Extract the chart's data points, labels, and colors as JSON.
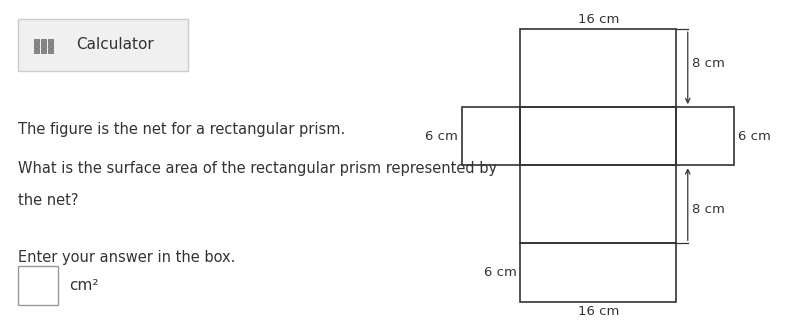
{
  "bg_color": "#ffffff",
  "text_color": "#333333",
  "fig_width": 8.0,
  "fig_height": 3.21,
  "dpi": 100,
  "calc_label": "Calculator",
  "line1": "The figure is the net for a rectangular prism.",
  "line2": "What is the surface area of the rectangular prism represented by",
  "line3": "the net?",
  "line4": "Enter your answer in the box.",
  "cm2_text": "cm²",
  "label_16cm_top": "16 cm",
  "label_16cm_bot": "16 cm",
  "label_8cm_top": "8 cm",
  "label_8cm_bot": "8 cm",
  "label_6cm_left": "6 cm",
  "label_6cm_right": "6 cm",
  "label_6cm_botleft": "6 cm",
  "line_color": "#333333",
  "line_width": 1.2,
  "font_size": 9.5,
  "text_font_size": 10.5
}
